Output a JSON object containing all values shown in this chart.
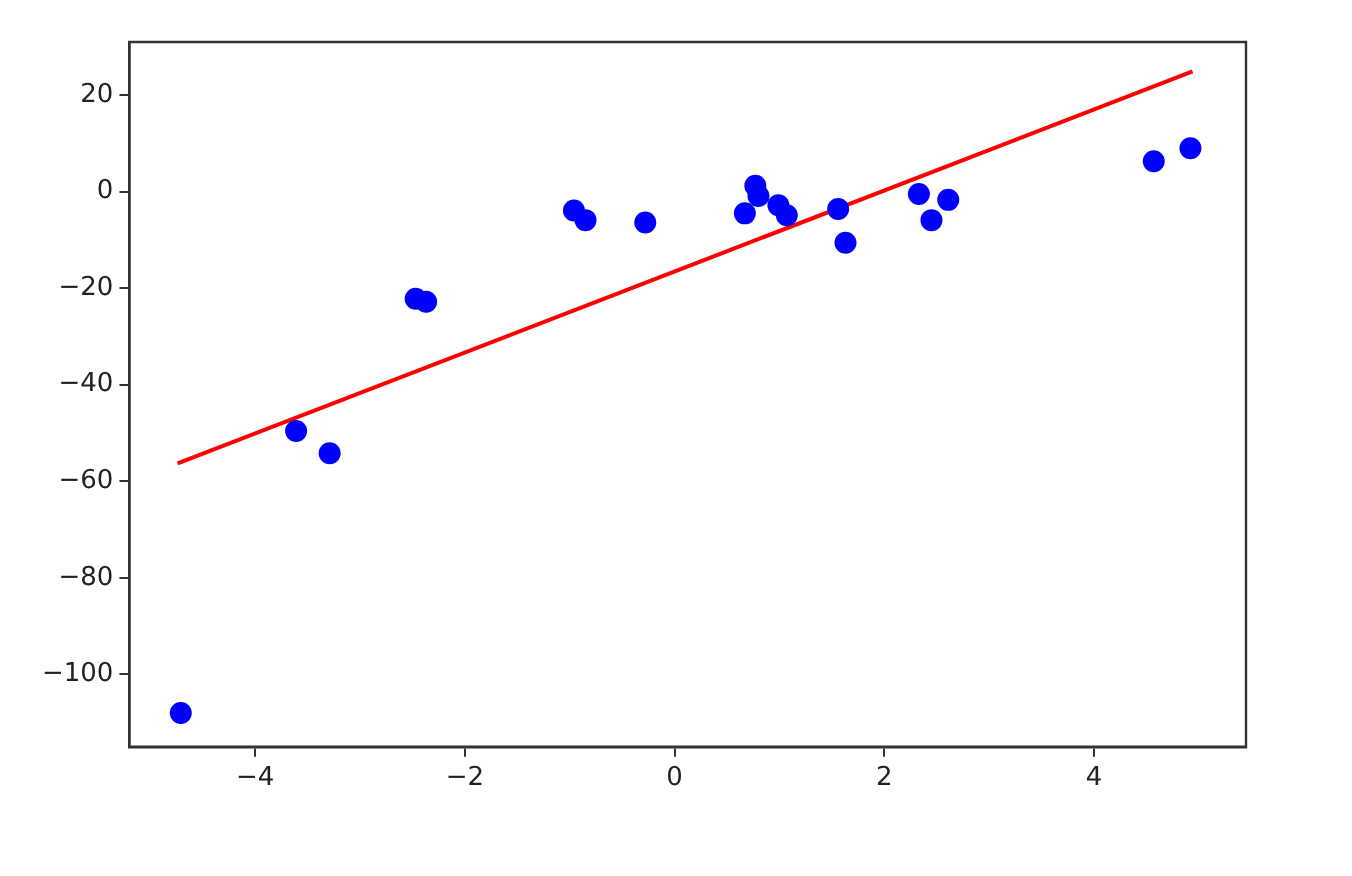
{
  "chart_data": {
    "type": "scatter",
    "xlim": [
      -5.2,
      5.45
    ],
    "ylim": [
      -115,
      31
    ],
    "xticks": [
      -4,
      -2,
      0,
      2,
      4
    ],
    "yticks": [
      -100,
      -80,
      -60,
      -40,
      -20,
      0,
      20
    ],
    "grid": false,
    "legend": false,
    "marker": "circle",
    "series": [
      {
        "type": "scatter",
        "color": "#0000ff",
        "x": [
          -4.71,
          -3.61,
          -3.29,
          -2.47,
          -2.37,
          -0.96,
          -0.85,
          -0.28,
          0.67,
          0.77,
          0.8,
          0.99,
          1.07,
          1.56,
          1.63,
          2.33,
          2.45,
          2.61,
          4.57,
          4.92
        ],
        "values": [
          -108,
          -49.6,
          -54.2,
          -22.2,
          -22.8,
          -3.9,
          -5.9,
          -6.4,
          -4.5,
          1.2,
          -0.9,
          -2.8,
          -4.9,
          -3.6,
          -10.6,
          -0.5,
          -5.9,
          -1.7,
          6.3,
          9.0
        ]
      },
      {
        "type": "line",
        "color": "#ff0000",
        "marker": "none",
        "line_style": "solid",
        "x": [
          -4.74,
          4.94
        ],
        "values": [
          -56.3,
          24.9
        ]
      }
    ]
  }
}
